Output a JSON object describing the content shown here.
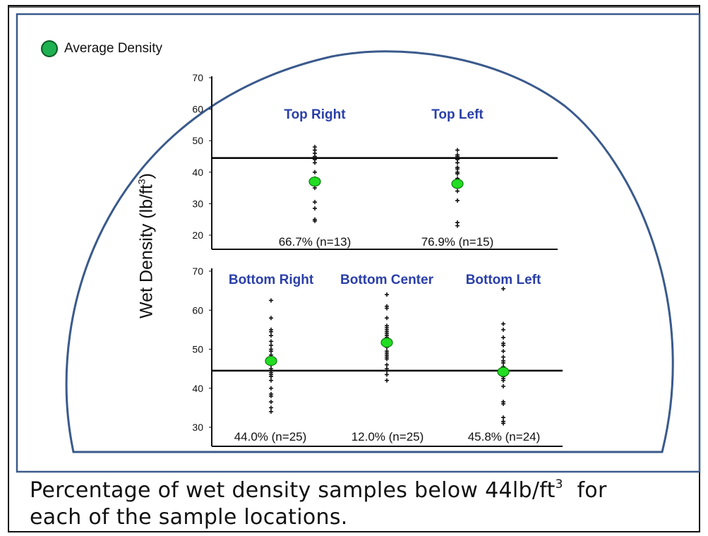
{
  "legend": {
    "label": "Average Density",
    "color": "#22c55e"
  },
  "ylabel": {
    "text": "Wet Density (lb/ft",
    "sup": "3",
    "close": ")"
  },
  "caption": {
    "part1": "Percentage of wet density samples below 44lb/ft",
    "sup": "3",
    "part2": "  for",
    "line2": "each of the sample locations."
  },
  "colors": {
    "series_label": "#2a3fa8",
    "marker": "#22dd22",
    "border": "#3a5a8c",
    "line": "#000000"
  },
  "chart_data": [
    {
      "type": "scatter",
      "title": "",
      "ylim": [
        20,
        70
      ],
      "yticks": [
        20,
        30,
        40,
        50,
        60,
        70
      ],
      "reference_line": 44.5,
      "groups": [
        {
          "name": "Top Right",
          "stat": "66.7% (n=13)",
          "average": 37,
          "samples": [
            48,
            47,
            46,
            45,
            44,
            43,
            40,
            38,
            35,
            30.5,
            28.5,
            25,
            24.5
          ]
        },
        {
          "name": "Top Left",
          "stat": "76.9% (n=15)",
          "average": 36.3,
          "samples": [
            47,
            45.5,
            45,
            44,
            43,
            41.5,
            41,
            40,
            39.5,
            38,
            36,
            34,
            31,
            24,
            23
          ]
        }
      ]
    },
    {
      "type": "scatter",
      "title": "",
      "ylim": [
        30,
        70
      ],
      "yticks": [
        30,
        40,
        50,
        60,
        70
      ],
      "reference_line": 44.5,
      "groups": [
        {
          "name": "Bottom Right",
          "stat": "44.0% (n=25)",
          "average": 47,
          "samples": [
            62.5,
            58,
            55,
            54.5,
            53.5,
            52,
            51,
            50,
            49.5,
            48.5,
            48,
            47.5,
            46,
            45,
            44.5,
            44,
            43.5,
            43,
            42,
            40,
            38.5,
            38,
            36.5,
            35,
            34
          ]
        },
        {
          "name": "Bottom Center",
          "stat": "12.0% (n=25)",
          "average": 51.7,
          "samples": [
            64,
            61,
            60.5,
            58,
            56,
            55.5,
            55,
            54.5,
            54,
            53.5,
            53,
            52.5,
            52,
            51,
            50.5,
            49.5,
            49,
            48.5,
            48,
            47.5,
            46,
            45,
            44.5,
            43.5,
            42
          ]
        },
        {
          "name": "Bottom Left",
          "stat": "45.8% (n=24)",
          "average": 44.2,
          "samples": [
            65.5,
            56.5,
            55,
            53,
            51.5,
            51,
            49.5,
            48,
            47,
            46.5,
            45.5,
            45,
            44.5,
            44,
            43.5,
            43,
            42.5,
            42,
            40.5,
            36.5,
            36,
            32.5,
            31.5,
            31
          ]
        }
      ]
    }
  ]
}
